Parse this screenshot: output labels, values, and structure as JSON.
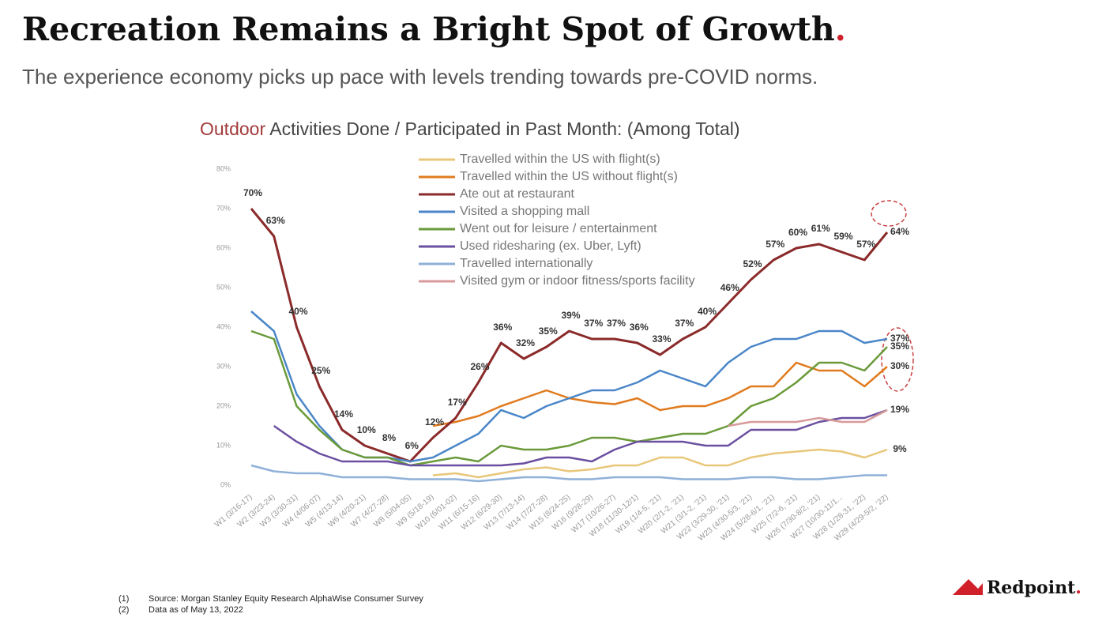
{
  "header": {
    "title": "Recreation Remains a Bright Spot of Growth",
    "title_dot": ".",
    "subtitle": "The experience economy picks up pace with levels trending towards pre-COVID norms."
  },
  "chart_data": {
    "type": "line",
    "title_highlight": "Outdoor",
    "title": "Activities Done / Participated in Past Month: (Among Total)",
    "categories": [
      "W1 (3/16-17)",
      "W2 (3/23-24)",
      "W3 (3/30-31)",
      "W4 (4/06-07)",
      "W5 (4/13-14)",
      "W6 (4/20-21)",
      "W7 (4/27-28)",
      "W8 (5/04-05)",
      "W9 (5/18-19)",
      "W10 (6/01-02)",
      "W11 (6/15-16)",
      "W12 (6/29-30)",
      "W13 (7/13-14)",
      "W14 (7/27-28)",
      "W15 (8/24-25)",
      "W16 (9/28-29)",
      "W17 (10/26-27)",
      "W18 (11/30-12/1)",
      "W19 (1/4-5, '21)",
      "W20 (2/1-2, '21)",
      "W21 (3/1-2, '21)",
      "W22 (3/29-30, '21)",
      "W23 (4/30-5/3, '21)",
      "W24 (5/28-6/1, '21)",
      "W25 (7/2-6, '21)",
      "W26 (7/30-8/2, '21)",
      "W27 (10/30-11/1...",
      "W28 (1/28-31, '22)",
      "W29 (4/29-5/2, '22)"
    ],
    "ylim": [
      0,
      80
    ],
    "yticks": [
      {
        "value": 0,
        "label": "0%"
      },
      {
        "value": 10,
        "label": "10%"
      },
      {
        "value": 20,
        "label": "20%"
      },
      {
        "value": 30,
        "label": "30%"
      },
      {
        "value": 40,
        "label": "40%"
      },
      {
        "value": 50,
        "label": "50%"
      },
      {
        "value": 60,
        "label": "60%"
      },
      {
        "value": 70,
        "label": "70%"
      },
      {
        "value": 80,
        "label": "80%"
      }
    ],
    "legend": "upper center",
    "series": [
      {
        "name": "Travelled within the US with flight(s)",
        "color": "#e8c77a",
        "values": [
          null,
          null,
          null,
          null,
          null,
          null,
          null,
          null,
          2.5,
          3,
          2,
          3,
          4,
          4.5,
          3.5,
          4,
          5,
          5,
          7,
          7,
          5,
          5,
          7,
          8,
          8.5,
          9,
          8.5,
          7,
          9
        ],
        "value_labels": [
          null,
          null,
          null,
          null,
          null,
          null,
          null,
          null,
          null,
          null,
          null,
          null,
          null,
          null,
          null,
          null,
          null,
          null,
          null,
          null,
          null,
          null,
          null,
          null,
          null,
          null,
          null,
          null,
          "9%"
        ]
      },
      {
        "name": "Travelled within the US without flight(s)",
        "color": "#e07b1f",
        "values": [
          null,
          null,
          null,
          null,
          null,
          null,
          null,
          null,
          15,
          16,
          17.5,
          20,
          22,
          24,
          22,
          21,
          20.5,
          22,
          19,
          20,
          20,
          22,
          25,
          25,
          31,
          29,
          29,
          25,
          30
        ],
        "value_labels": [
          null,
          null,
          null,
          null,
          null,
          null,
          null,
          null,
          null,
          null,
          null,
          null,
          null,
          null,
          null,
          null,
          null,
          null,
          null,
          null,
          null,
          null,
          null,
          null,
          null,
          null,
          null,
          null,
          "30%"
        ]
      },
      {
        "name": "Ate out at restaurant",
        "color": "#8b2a2a",
        "values": [
          70,
          63,
          40,
          25,
          14,
          10,
          8,
          6,
          12,
          17,
          26,
          36,
          32,
          35,
          39,
          37,
          37,
          36,
          33,
          37,
          40,
          46,
          52,
          57,
          60,
          61,
          59,
          57,
          64
        ],
        "value_labels": [
          "70%",
          "63%",
          "40%",
          "25%",
          "14%",
          "10%",
          "8%",
          "6%",
          "12%",
          "17%",
          "26%",
          "36%",
          "32%",
          "35%",
          "39%",
          "37%",
          "37%",
          "36%",
          "33%",
          "37%",
          "40%",
          "46%",
          "52%",
          "57%",
          "60%",
          "61%",
          "59%",
          "57%",
          "64%"
        ]
      },
      {
        "name": "Visited a shopping mall",
        "color": "#4a86c8",
        "values": [
          44,
          39,
          23,
          15,
          9,
          7,
          7,
          6,
          7,
          10,
          13,
          19,
          17,
          20,
          22,
          24,
          24,
          26,
          29,
          27,
          25,
          31,
          35,
          37,
          37,
          39,
          39,
          36,
          37
        ],
        "value_labels": [
          null,
          null,
          null,
          null,
          null,
          null,
          null,
          null,
          null,
          null,
          null,
          null,
          null,
          null,
          null,
          null,
          null,
          null,
          null,
          null,
          null,
          null,
          null,
          null,
          null,
          null,
          null,
          null,
          "37%"
        ]
      },
      {
        "name": "Went out for leisure / entertainment",
        "color": "#6a9a3a",
        "values": [
          39,
          37,
          20,
          14,
          9,
          7,
          7,
          5,
          6,
          7,
          6,
          10,
          9,
          9,
          10,
          12,
          12,
          11,
          12,
          13,
          13,
          15,
          20,
          22,
          26,
          31,
          31,
          29,
          35
        ],
        "value_labels": [
          null,
          null,
          null,
          null,
          null,
          null,
          null,
          null,
          null,
          null,
          null,
          null,
          null,
          null,
          null,
          null,
          null,
          null,
          null,
          null,
          null,
          null,
          null,
          null,
          null,
          null,
          null,
          null,
          "35%"
        ]
      },
      {
        "name": "Used ridesharing (ex. Uber, Lyft)",
        "color": "#6b4fa0",
        "values": [
          null,
          15,
          11,
          8,
          6,
          6,
          6,
          5,
          5,
          5,
          5,
          5,
          5.5,
          7,
          7,
          6,
          9,
          11,
          11,
          11,
          10,
          10,
          14,
          14,
          14,
          16,
          17,
          17,
          19
        ],
        "value_labels": [
          null,
          null,
          null,
          null,
          null,
          null,
          null,
          null,
          null,
          null,
          null,
          null,
          null,
          null,
          null,
          null,
          null,
          null,
          null,
          null,
          null,
          null,
          null,
          null,
          null,
          null,
          null,
          null,
          "19%"
        ]
      },
      {
        "name": "Travelled internationally",
        "color": "#8fb0d8",
        "values": [
          5,
          3.5,
          3,
          3,
          2,
          2,
          2,
          1.5,
          1.5,
          1.5,
          1,
          1.5,
          2,
          2,
          1.5,
          1.5,
          2,
          2,
          2,
          1.5,
          1.5,
          1.5,
          2,
          2,
          1.5,
          1.5,
          2,
          2.5,
          2.5
        ]
      },
      {
        "name": "Visited gym or indoor fitness/sports facility",
        "color": "#d89a9a",
        "values": [
          null,
          null,
          null,
          null,
          null,
          null,
          null,
          null,
          null,
          null,
          null,
          null,
          null,
          null,
          null,
          null,
          null,
          null,
          null,
          null,
          null,
          15,
          16,
          16,
          16,
          17,
          16,
          16,
          19
        ]
      }
    ]
  },
  "footnotes": [
    {
      "marker": "(1)",
      "text": "Source: Morgan Stanley Equity Research AlphaWise Consumer Survey"
    },
    {
      "marker": "(2)",
      "text": "Data as of May 13, 2022"
    }
  ],
  "logo": "Redpoint",
  "logo_dot": "."
}
